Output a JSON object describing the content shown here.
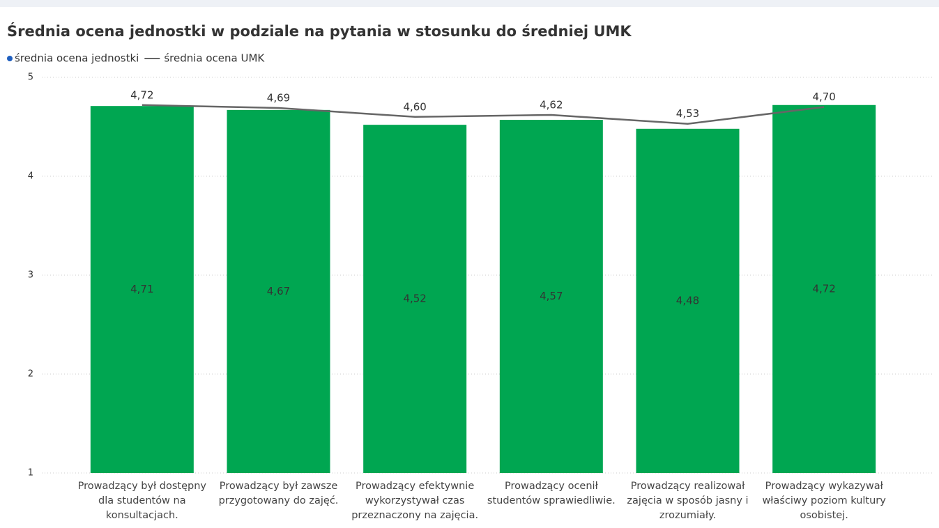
{
  "chart_data": {
    "type": "bar",
    "title": "Średnia ocena jednostki w podziale na pytania w stosunku do średniej UMK",
    "categories": [
      "Prowadzący był dostępny dla studentów na konsultacjach.",
      "Prowadzący był zawsze przygotowany do zajęć.",
      "Prowadzący efektywnie wykorzystywał czas przeznaczony na zajęcia.",
      "Prowadzący ocenił studentów sprawiedliwie.",
      "Prowadzący realizował zajęcia w sposób jasny i zrozumiały.",
      "Prowadzący wykazywał właściwy poziom kultury osobistej."
    ],
    "series": [
      {
        "name": "średnia ocena jednostki",
        "type": "bar",
        "color": "#00a651",
        "values": [
          4.71,
          4.67,
          4.52,
          4.57,
          4.48,
          4.72
        ],
        "value_labels": [
          "4,71",
          "4,67",
          "4,52",
          "4,57",
          "4,48",
          "4,72"
        ]
      },
      {
        "name": "średnia ocena UMK",
        "type": "line",
        "color": "#666666",
        "values": [
          4.72,
          4.69,
          4.6,
          4.62,
          4.53,
          4.7
        ],
        "value_labels": [
          "4,72",
          "4,69",
          "4,60",
          "4,62",
          "4,53",
          "4,70"
        ]
      }
    ],
    "ylim": [
      1,
      5
    ],
    "yticks": [
      1,
      2,
      3,
      4,
      5
    ],
    "grid": true,
    "legend": "top-left"
  }
}
